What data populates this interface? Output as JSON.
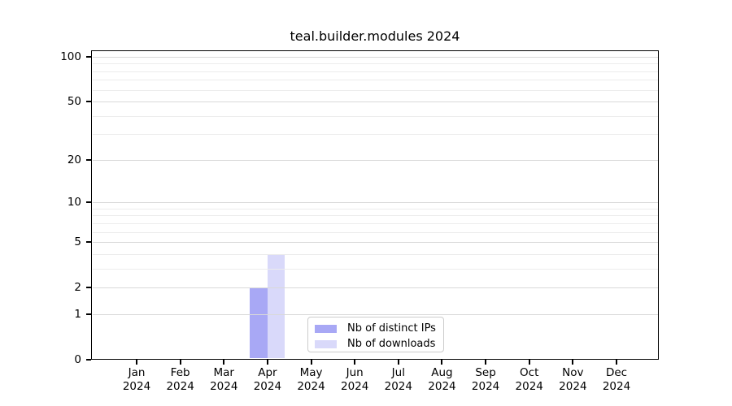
{
  "chart_data": {
    "type": "bar",
    "title": "teal.builder.modules 2024",
    "categories": [
      "Jan 2024",
      "Feb 2024",
      "Mar 2024",
      "Apr 2024",
      "May 2024",
      "Jun 2024",
      "Jul 2024",
      "Aug 2024",
      "Sep 2024",
      "Oct 2024",
      "Nov 2024",
      "Dec 2024"
    ],
    "series": [
      {
        "name": "Nb of distinct IPs",
        "color": "#a8a8f5",
        "values": [
          0,
          0,
          0,
          2,
          0,
          0,
          0,
          0,
          0,
          0,
          0,
          0
        ]
      },
      {
        "name": "Nb of downloads",
        "color": "#d9d9fa",
        "values": [
          0,
          0,
          0,
          4,
          0,
          0,
          0,
          0,
          0,
          0,
          0,
          0
        ]
      }
    ],
    "xlabel": "",
    "ylabel": "",
    "yscale": "log1p",
    "ylim": [
      0,
      110
    ],
    "yticks": [
      0,
      1,
      2,
      5,
      10,
      20,
      50,
      100
    ],
    "minor_gridlines": [
      3,
      4,
      6,
      7,
      8,
      9,
      30,
      40,
      60,
      70,
      80,
      90
    ],
    "grid": true,
    "legend_position": "lower center",
    "colors": {
      "background": "#ffffff",
      "axis": "#000000",
      "grid_major": "#d9d9d9",
      "grid_minor": "#ececec",
      "legend_border": "#cccccc"
    }
  }
}
